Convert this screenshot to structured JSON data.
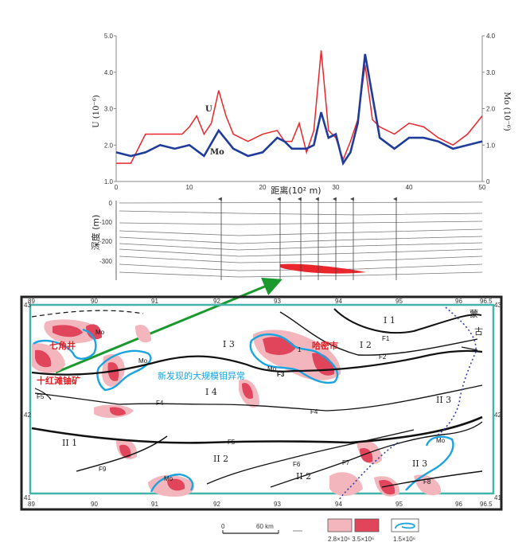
{
  "chart_data": {
    "type": "line",
    "x_axis": {
      "label": "距离(10² m)",
      "min": 0,
      "max": 50,
      "ticks": [
        "0",
        "10",
        "20",
        "30",
        "40",
        "50"
      ]
    },
    "y_left": {
      "label": "U (10⁻⁶)",
      "min": 1.0,
      "max": 5.0,
      "ticks": [
        "1.0",
        "2.0",
        "3.0",
        "4.0",
        "5.0"
      ]
    },
    "y_right": {
      "label": "Mo (10⁻⁶)",
      "min": 0,
      "max": 4.0,
      "ticks": [
        "0",
        "1.0",
        "2.0",
        "3.0",
        "4.0"
      ]
    },
    "series": [
      {
        "name": "U",
        "color": "#e8262b",
        "axis": "left",
        "x": [
          0,
          2,
          4,
          6,
          8,
          9,
          10,
          11,
          12,
          13,
          14,
          15,
          16,
          18,
          20,
          22,
          23,
          24,
          25,
          26,
          27,
          28,
          29,
          30,
          31,
          32,
          33,
          34,
          35,
          36,
          38,
          40,
          42,
          44,
          46,
          48,
          50
        ],
        "y": [
          1.5,
          1.5,
          2.3,
          2.3,
          2.3,
          2.3,
          2.5,
          2.8,
          2.3,
          2.6,
          3.5,
          2.8,
          2.3,
          2.1,
          2.3,
          2.4,
          2.1,
          2.1,
          2.6,
          1.8,
          2.4,
          4.6,
          2.4,
          2.2,
          1.6,
          2.1,
          2.7,
          4.2,
          2.7,
          2.5,
          2.3,
          2.6,
          2.5,
          2.2,
          2.0,
          2.3,
          2.8
        ]
      },
      {
        "name": "Mo",
        "color": "#1f3b9b",
        "axis": "right",
        "x": [
          0,
          2,
          4,
          6,
          8,
          10,
          12,
          14,
          16,
          18,
          20,
          22,
          23,
          24,
          26,
          27,
          28,
          29,
          30,
          31,
          32,
          33,
          34,
          36,
          38,
          40,
          42,
          44,
          46,
          48,
          50
        ],
        "y": [
          0.8,
          0.7,
          0.8,
          1.0,
          0.9,
          1.0,
          0.7,
          1.4,
          0.9,
          0.7,
          0.8,
          1.2,
          1.1,
          0.9,
          0.9,
          1.0,
          1.9,
          1.2,
          1.3,
          0.5,
          0.8,
          1.6,
          3.5,
          1.2,
          0.9,
          1.2,
          1.2,
          1.1,
          0.9,
          1.0,
          1.1
        ]
      }
    ],
    "grid": false,
    "legend": "inline labels"
  },
  "section": {
    "y_label": "深度 (m)",
    "ticks": [
      "0",
      "-100",
      "-200",
      "-300"
    ]
  },
  "map": {
    "lon_labels": [
      "89",
      "90",
      "91",
      "92",
      "93",
      "94",
      "95",
      "96",
      "96.5"
    ],
    "lat_labels_left": [
      "43",
      "42",
      "41"
    ],
    "lat_labels_right": [
      "43",
      "42",
      "41"
    ],
    "faults": [
      "F1",
      "F2",
      "F3",
      "F4",
      "F4",
      "F5",
      "F5",
      "F6",
      "F7",
      "F8",
      "F9"
    ],
    "zones": [
      "I 1",
      "I 2",
      "I 3",
      "I 4",
      "II 1",
      "II 2",
      "II 2",
      "II 3",
      "II 3"
    ],
    "place_labels": [
      "七角井",
      "十红滩铀矿",
      "哈密市",
      "蒙",
      "古"
    ],
    "mo_labels": [
      "Mo",
      "Mo",
      "Mo",
      "Mo",
      "Mo"
    ],
    "annotation": "新发现的大规模钼异常",
    "marker": "1",
    "colors": {
      "outer_anomaly": "#f3b6bd",
      "inner_anomaly": "#e0455c",
      "mo_contour": "#1aa3df",
      "border": "#41b5a9"
    }
  },
  "legend": {
    "scale_zero": "0",
    "scale_label": "60 km",
    "anomaly_values": "2.8×10⁶  3.5×10⁶",
    "mo_value": "1.5×10⁶"
  }
}
